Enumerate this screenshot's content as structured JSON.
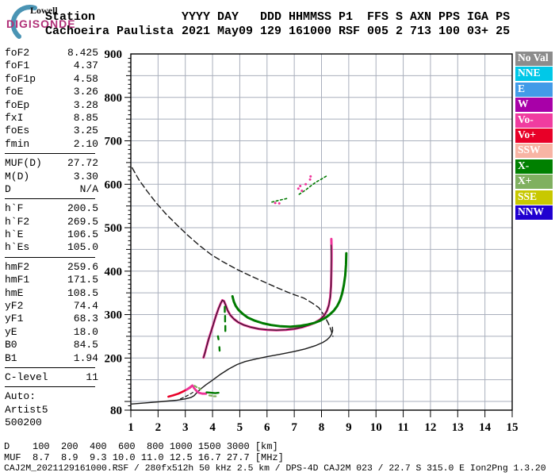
{
  "header": {
    "logo": {
      "line1": "Lowell",
      "line2": "DIGISONDE",
      "brand_color": "#B13078",
      "arc_color": "#4A94B4"
    },
    "row1_left": "Station",
    "row1_right": "YYYY DAY   DDD HHMMSS P1  FFS S AXN PPS IGA PS",
    "row2_left": "Cachoeira Paulista",
    "row2_right": "2021 May09 129 161000 RSF 005 2 713 100 03+ 25"
  },
  "left_panel": {
    "groups": [
      {
        "rows": [
          [
            "foF2",
            "8.425"
          ],
          [
            "foF1",
            "4.37"
          ],
          [
            "foF1p",
            "4.58"
          ],
          [
            "foE",
            "3.26"
          ],
          [
            "foEp",
            "3.28"
          ],
          [
            "fxI",
            "8.85"
          ],
          [
            "foEs",
            "3.25"
          ],
          [
            "fmin",
            "2.10"
          ]
        ]
      },
      {
        "rows": [
          [
            "MUF(D)",
            "27.72"
          ],
          [
            "M(D)",
            "3.30"
          ],
          [
            "D",
            "N/A"
          ]
        ]
      },
      {
        "rows": [
          [
            "h`F",
            "200.5"
          ],
          [
            "h`F2",
            "269.5"
          ],
          [
            "h`E",
            "106.5"
          ],
          [
            "h`Es",
            "105.0"
          ]
        ]
      },
      {
        "rows": [
          [
            "hmF2",
            "259.6"
          ],
          [
            "hmF1",
            "171.5"
          ],
          [
            "hmE",
            "108.5"
          ],
          [
            "yF2",
            "74.4"
          ],
          [
            "yF1",
            "68.3"
          ],
          [
            "yE",
            "18.0"
          ],
          [
            "B0",
            "84.5"
          ],
          [
            "B1",
            "1.94"
          ]
        ]
      },
      {
        "rows": [
          [
            "C-level",
            "11"
          ]
        ]
      },
      {
        "rows": [
          [
            "Auto:",
            ""
          ],
          [
            "Artist5",
            ""
          ],
          [
            "500200",
            ""
          ]
        ]
      }
    ]
  },
  "legend": {
    "items": [
      {
        "label": "No Val",
        "color": "#8C8C8C"
      },
      {
        "label": "NNE",
        "color": "#00C8E8"
      },
      {
        "label": "E",
        "color": "#429BE8"
      },
      {
        "label": "W",
        "color": "#A800A8"
      },
      {
        "label": "Vo-",
        "color": "#F03CA0"
      },
      {
        "label": "Vo+",
        "color": "#E80028"
      },
      {
        "label": "SSW",
        "color": "#F8B4A4"
      },
      {
        "label": "X-",
        "color": "#008000"
      },
      {
        "label": "X+",
        "color": "#80B060"
      },
      {
        "label": "SSE",
        "color": "#C8C800"
      },
      {
        "label": "NNW",
        "color": "#2000D0"
      }
    ]
  },
  "bottom": {
    "d_row": {
      "label": "D",
      "values": [
        "100",
        "200",
        "400",
        "600",
        "800",
        "1000",
        "1500",
        "3000"
      ],
      "unit": "[km]"
    },
    "muf_row": {
      "label": "MUF",
      "values": [
        "8.7",
        "8.9",
        "9.3",
        "10.0",
        "11.0",
        "12.5",
        "16.7",
        "27.7"
      ],
      "unit": "[MHz]"
    },
    "footer": "CAJ2M_2021129161000.RSF / 280fx512h 50 kHz 2.5 km / DPS-4D CAJ2M 023 / 22.7 S 315.0 E Ion2Png 1.3.20"
  },
  "chart_data": {
    "type": "line",
    "title": "",
    "xlabel": "",
    "ylabel": "",
    "x_range": [
      1,
      15
    ],
    "y_range": [
      80,
      900
    ],
    "x_tick_labels": [
      1,
      2,
      3,
      4,
      5,
      6,
      7,
      8,
      9,
      10,
      11,
      12,
      13,
      14,
      15
    ],
    "y_tick_labels": [
      900,
      800,
      700,
      600,
      500,
      400,
      300,
      200,
      80
    ],
    "grid": {
      "on": true,
      "color": "#A9AFBC",
      "x_step_mhz": 1,
      "y_step_km": 50
    },
    "legend_position": "right",
    "series": [
      {
        "name": "muf-transmission-curve",
        "color": "#1a1a1a",
        "width": 1.4,
        "dash": "7,4",
        "points": [
          [
            1.05,
            638
          ],
          [
            1.3,
            610
          ],
          [
            1.6,
            584
          ],
          [
            1.95,
            556
          ],
          [
            2.3,
            531
          ],
          [
            2.7,
            506
          ],
          [
            3.1,
            482
          ],
          [
            3.5,
            460
          ],
          [
            3.95,
            438
          ],
          [
            4.4,
            421
          ],
          [
            4.9,
            404
          ],
          [
            5.4,
            389
          ],
          [
            5.9,
            375
          ],
          [
            6.4,
            361
          ],
          [
            6.9,
            348
          ],
          [
            7.35,
            338
          ],
          [
            7.65,
            327
          ],
          [
            7.9,
            316
          ],
          [
            8.1,
            298
          ],
          [
            8.25,
            280
          ],
          [
            8.35,
            264
          ],
          [
            8.42,
            250
          ]
        ]
      },
      {
        "name": "true-height-profile",
        "color": "#1a1a1a",
        "width": 1.4,
        "points": [
          [
            1.0,
            94
          ],
          [
            1.6,
            97
          ],
          [
            2.2,
            100
          ],
          [
            2.7,
            103
          ],
          [
            3.0,
            106
          ],
          [
            3.2,
            109
          ],
          [
            3.32,
            113
          ],
          [
            3.42,
            120
          ],
          [
            3.55,
            128
          ],
          [
            3.75,
            138
          ],
          [
            4.0,
            149
          ],
          [
            4.3,
            163
          ],
          [
            4.6,
            175
          ],
          [
            4.9,
            185
          ],
          [
            5.2,
            192
          ],
          [
            5.6,
            198
          ],
          [
            6.0,
            203
          ],
          [
            6.5,
            209
          ],
          [
            7.0,
            215
          ],
          [
            7.4,
            221
          ],
          [
            7.8,
            229
          ],
          [
            8.05,
            236
          ],
          [
            8.2,
            242
          ],
          [
            8.3,
            248
          ],
          [
            8.37,
            255
          ],
          [
            8.41,
            263
          ],
          [
            8.4,
            271
          ]
        ]
      },
      {
        "name": "e-region-fit-dashed",
        "color": "#1a1a1a",
        "width": 1.2,
        "dash": "4,3",
        "points": [
          [
            2.82,
            106
          ],
          [
            3.0,
            111
          ],
          [
            3.15,
            116
          ],
          [
            3.28,
            121
          ]
        ]
      },
      {
        "name": "o-trace-e-red",
        "color": "#E80028",
        "width": 2.6,
        "points": [
          [
            2.38,
            111
          ],
          [
            2.55,
            114
          ],
          [
            2.75,
            118
          ],
          [
            2.95,
            124
          ],
          [
            3.1,
            129
          ],
          [
            3.2,
            133
          ]
        ]
      },
      {
        "name": "o-trace-e-pink",
        "color": "#EE3399",
        "width": 2.8,
        "points": [
          [
            3.05,
            127
          ],
          [
            3.18,
            133
          ],
          [
            3.26,
            137
          ],
          [
            3.32,
            131
          ],
          [
            3.4,
            125
          ],
          [
            3.5,
            120
          ],
          [
            3.62,
            118
          ],
          [
            3.76,
            118
          ]
        ]
      },
      {
        "name": "x-trace-e-green",
        "color": "#007A00",
        "width": 2.4,
        "points": [
          [
            3.78,
            121
          ],
          [
            3.95,
            120
          ],
          [
            4.1,
            119
          ],
          [
            4.22,
            120
          ]
        ]
      },
      {
        "name": "x-trace-e-lime",
        "color": "#7FAE5C",
        "width": 2.2,
        "segments": [
          [
            [
              3.34,
              136
            ],
            [
              3.42,
              133
            ]
          ],
          [
            [
              3.5,
              131
            ],
            [
              3.56,
              128
            ]
          ],
          [
            [
              3.88,
              114
            ],
            [
              3.98,
              113
            ]
          ],
          [
            [
              4.05,
              112
            ],
            [
              4.12,
              112
            ]
          ]
        ]
      },
      {
        "name": "o-trace-f",
        "color": "#EE3399",
        "width": 3,
        "points": [
          [
            3.67,
            201
          ],
          [
            3.72,
            212
          ],
          [
            3.78,
            226
          ],
          [
            3.85,
            242
          ],
          [
            3.93,
            258
          ],
          [
            4.02,
            276
          ],
          [
            4.12,
            296
          ],
          [
            4.22,
            314
          ],
          [
            4.3,
            326
          ],
          [
            4.36,
            333
          ],
          [
            4.42,
            331
          ],
          [
            4.48,
            322
          ],
          [
            4.55,
            310
          ],
          [
            4.65,
            299
          ],
          [
            4.78,
            290
          ],
          [
            4.95,
            282
          ],
          [
            5.15,
            276
          ],
          [
            5.4,
            271
          ],
          [
            5.7,
            267
          ],
          [
            6.0,
            265
          ],
          [
            6.35,
            264
          ],
          [
            6.7,
            265
          ],
          [
            7.0,
            267
          ],
          [
            7.3,
            271
          ],
          [
            7.55,
            276
          ],
          [
            7.75,
            281
          ],
          [
            7.95,
            289
          ],
          [
            8.1,
            298
          ],
          [
            8.2,
            309
          ],
          [
            8.27,
            322
          ],
          [
            8.32,
            340
          ],
          [
            8.35,
            365
          ],
          [
            8.36,
            395
          ],
          [
            8.37,
            425
          ],
          [
            8.37,
            455
          ],
          [
            8.36,
            474
          ]
        ]
      },
      {
        "name": "o-trace-f-fit",
        "color": "#1a1a1a",
        "width": 1.1,
        "points": [
          [
            3.67,
            201
          ],
          [
            3.72,
            212
          ],
          [
            3.78,
            226
          ],
          [
            3.85,
            242
          ],
          [
            3.93,
            258
          ],
          [
            4.02,
            276
          ],
          [
            4.12,
            296
          ],
          [
            4.22,
            314
          ],
          [
            4.3,
            326
          ],
          [
            4.36,
            333
          ],
          [
            4.42,
            331
          ],
          [
            4.48,
            322
          ],
          [
            4.55,
            310
          ],
          [
            4.65,
            299
          ],
          [
            4.78,
            290
          ],
          [
            4.95,
            282
          ],
          [
            5.15,
            276
          ],
          [
            5.4,
            271
          ],
          [
            5.7,
            267
          ],
          [
            6.0,
            265
          ],
          [
            6.35,
            264
          ],
          [
            6.7,
            265
          ],
          [
            7.0,
            267
          ],
          [
            7.3,
            271
          ],
          [
            7.55,
            276
          ],
          [
            7.75,
            281
          ],
          [
            7.95,
            289
          ],
          [
            8.1,
            298
          ],
          [
            8.2,
            309
          ],
          [
            8.27,
            322
          ],
          [
            8.32,
            340
          ],
          [
            8.35,
            365
          ],
          [
            8.36,
            400
          ],
          [
            8.36,
            440
          ],
          [
            8.35,
            460
          ]
        ]
      },
      {
        "name": "x-trace-f",
        "color": "#007A00",
        "width": 3,
        "points": [
          [
            4.73,
            342
          ],
          [
            4.78,
            330
          ],
          [
            4.85,
            320
          ],
          [
            4.95,
            311
          ],
          [
            5.1,
            302
          ],
          [
            5.3,
            293
          ],
          [
            5.55,
            286
          ],
          [
            5.85,
            280
          ],
          [
            6.15,
            276
          ],
          [
            6.5,
            273
          ],
          [
            6.85,
            272
          ],
          [
            7.2,
            274
          ],
          [
            7.5,
            277
          ],
          [
            7.75,
            281
          ],
          [
            7.95,
            286
          ],
          [
            8.15,
            293
          ],
          [
            8.3,
            300
          ],
          [
            8.45,
            309
          ],
          [
            8.58,
            320
          ],
          [
            8.68,
            333
          ],
          [
            8.76,
            349
          ],
          [
            8.82,
            368
          ],
          [
            8.87,
            390
          ],
          [
            8.9,
            415
          ],
          [
            8.91,
            441
          ]
        ]
      },
      {
        "name": "x-trace-f-dashes",
        "color": "#007A00",
        "width": 2.4,
        "segments": [
          [
            [
              4.45,
              318
            ],
            [
              4.45,
              306
            ]
          ],
          [
            [
              4.46,
              297
            ],
            [
              4.46,
              284
            ]
          ],
          [
            [
              4.47,
              274
            ],
            [
              4.47,
              262
            ]
          ],
          [
            [
              4.2,
              250
            ],
            [
              4.22,
              243
            ]
          ],
          [
            [
              4.25,
              225
            ],
            [
              4.26,
              217
            ]
          ]
        ]
      },
      {
        "name": "second-hop-green-a",
        "color": "#007A00",
        "width": 1.6,
        "dash": "2.5,3",
        "points": [
          [
            6.18,
            559
          ],
          [
            6.5,
            564
          ],
          [
            6.78,
            568
          ]
        ]
      },
      {
        "name": "second-hop-green-b",
        "color": "#007A00",
        "width": 1.6,
        "dash": "2.5,3",
        "points": [
          [
            7.18,
            577
          ],
          [
            7.4,
            586
          ],
          [
            7.6,
            596
          ],
          [
            7.8,
            605
          ],
          [
            8.0,
            612
          ],
          [
            8.18,
            619
          ]
        ]
      },
      {
        "name": "second-hop-pink-dots",
        "color": "#EE3399",
        "style": "dots",
        "r": 1.5,
        "points": [
          [
            6.3,
            557
          ],
          [
            6.45,
            556
          ],
          [
            7.15,
            590
          ],
          [
            7.22,
            596
          ],
          [
            7.28,
            585
          ],
          [
            7.42,
            600
          ],
          [
            7.58,
            611
          ],
          [
            7.6,
            618
          ]
        ]
      }
    ]
  }
}
